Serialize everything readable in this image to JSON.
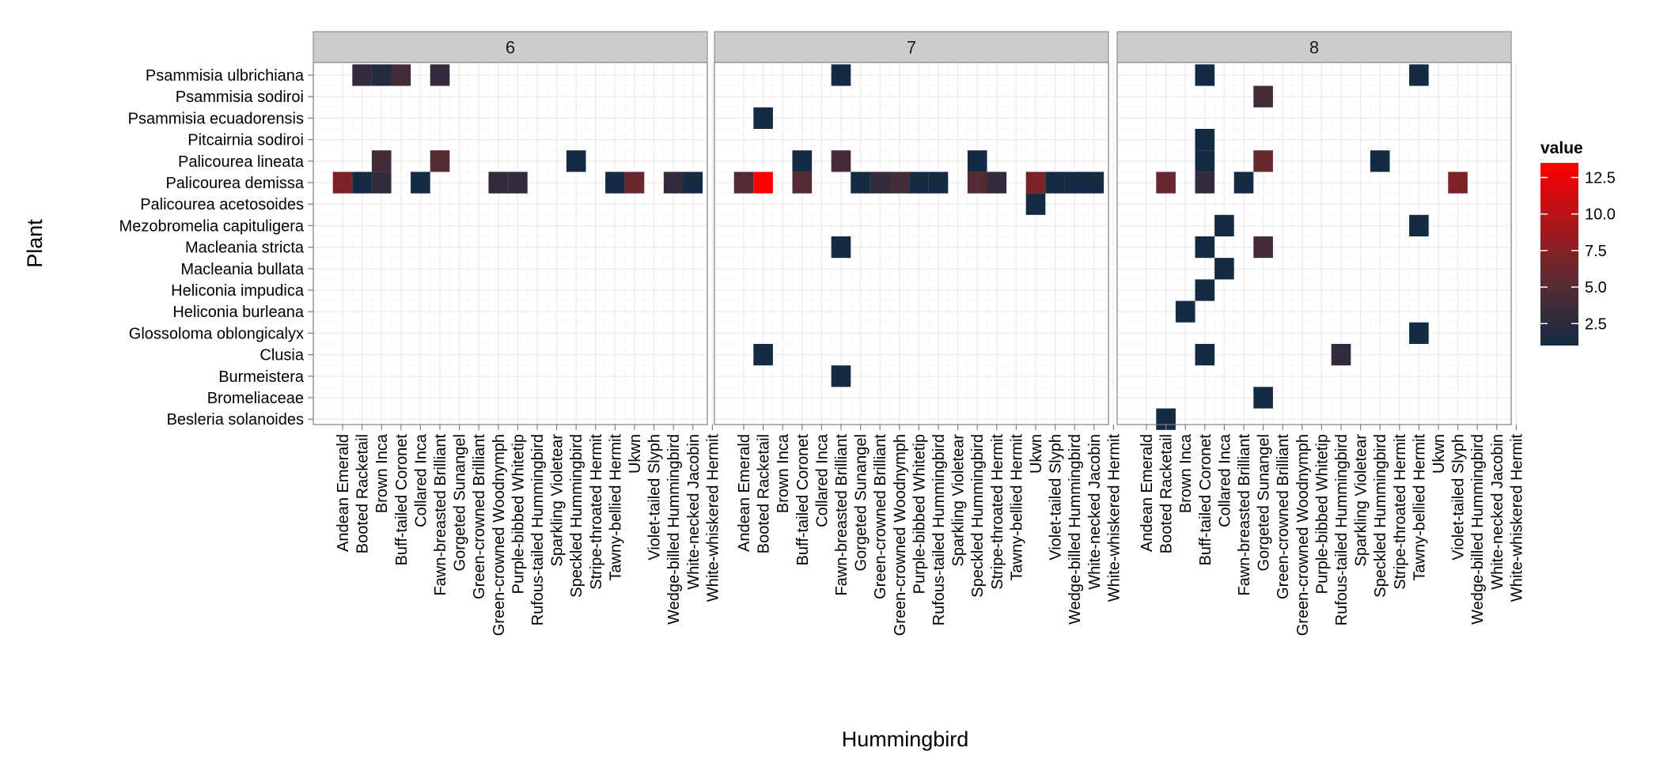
{
  "chart_data": {
    "type": "heatmap",
    "xlabel": "Hummingbird",
    "ylabel": "Plant",
    "facets": [
      "6",
      "7",
      "8"
    ],
    "x_categories": [
      "Andean Emerald",
      "Booted Racketail",
      "Brown Inca",
      "Buff-tailed Coronet",
      "Collared Inca",
      "Fawn-breasted Brilliant",
      "Gorgeted Sunangel",
      "Green-crowned Brilliant",
      "Green-crowned Woodnymph",
      "Purple-bibbed Whitetip",
      "Rufous-tailed Hummingbird",
      "Sparkling Violetear",
      "Speckled Hummingbird",
      "Stripe-throated Hermit",
      "Tawny-bellied Hermit",
      "Ukwn",
      "Violet-tailed Slyph",
      "Wedge-billed Hummingbird",
      "White-necked Jacobin",
      "White-whiskered Hermit"
    ],
    "y_categories": [
      "Psammisia ulbrichiana",
      "Psammisia sodiroi",
      "Psammisia ecuadorensis",
      "Pitcairnia sodiroi",
      "Palicourea lineata",
      "Palicourea demissa",
      "Palicourea acetosoides",
      "Mezobromelia capituligera",
      "Macleania stricta",
      "Macleania bullata",
      "Heliconia impudica",
      "Heliconia burleana",
      "Glossoloma oblongicalyx",
      "Clusia",
      "Burmeistera",
      "Bromeliaceae",
      "Besleria solanoides"
    ],
    "legend": {
      "title": "value",
      "ticks": [
        "2.5",
        "5.0",
        "7.5",
        "10.0",
        "12.5"
      ],
      "range": [
        1,
        13.5
      ],
      "low_color": "#132b43",
      "mid_color": "#5a2b33",
      "high_color": "#ff0000",
      "position": "right"
    },
    "cells": [
      {
        "facet": "6",
        "x": "Booted Racketail",
        "y": "Psammisia ulbrichiana",
        "value": 3
      },
      {
        "facet": "6",
        "x": "Brown Inca",
        "y": "Psammisia ulbrichiana",
        "value": 2
      },
      {
        "facet": "6",
        "x": "Buff-tailed Coronet",
        "y": "Psammisia ulbrichiana",
        "value": 4
      },
      {
        "facet": "6",
        "x": "Fawn-breasted Brilliant",
        "y": "Psammisia ulbrichiana",
        "value": 3
      },
      {
        "facet": "6",
        "x": "Brown Inca",
        "y": "Palicourea lineata",
        "value": 4
      },
      {
        "facet": "6",
        "x": "Fawn-breasted Brilliant",
        "y": "Palicourea lineata",
        "value": 5
      },
      {
        "facet": "6",
        "x": "Speckled Hummingbird",
        "y": "Palicourea lineata",
        "value": 1
      },
      {
        "facet": "6",
        "x": "Andean Emerald",
        "y": "Palicourea demissa",
        "value": 7
      },
      {
        "facet": "6",
        "x": "Booted Racketail",
        "y": "Palicourea demissa",
        "value": 1
      },
      {
        "facet": "6",
        "x": "Brown Inca",
        "y": "Palicourea demissa",
        "value": 3
      },
      {
        "facet": "6",
        "x": "Collared Inca",
        "y": "Palicourea demissa",
        "value": 1
      },
      {
        "facet": "6",
        "x": "Green-crowned Woodnymph",
        "y": "Palicourea demissa",
        "value": 3
      },
      {
        "facet": "6",
        "x": "Purple-bibbed Whitetip",
        "y": "Palicourea demissa",
        "value": 3
      },
      {
        "facet": "6",
        "x": "Tawny-bellied Hermit",
        "y": "Palicourea demissa",
        "value": 1
      },
      {
        "facet": "6",
        "x": "Ukwn",
        "y": "Palicourea demissa",
        "value": 6
      },
      {
        "facet": "6",
        "x": "Wedge-billed Hummingbird",
        "y": "Palicourea demissa",
        "value": 3
      },
      {
        "facet": "6",
        "x": "White-necked Jacobin",
        "y": "Palicourea demissa",
        "value": 1
      },
      {
        "facet": "7",
        "x": "Fawn-breasted Brilliant",
        "y": "Psammisia ulbrichiana",
        "value": 1
      },
      {
        "facet": "7",
        "x": "Booted Racketail",
        "y": "Psammisia ecuadorensis",
        "value": 1
      },
      {
        "facet": "7",
        "x": "Buff-tailed Coronet",
        "y": "Palicourea lineata",
        "value": 1
      },
      {
        "facet": "7",
        "x": "Fawn-breasted Brilliant",
        "y": "Palicourea lineata",
        "value": 4
      },
      {
        "facet": "7",
        "x": "Speckled Hummingbird",
        "y": "Palicourea lineata",
        "value": 1
      },
      {
        "facet": "7",
        "x": "Andean Emerald",
        "y": "Palicourea demissa",
        "value": 5
      },
      {
        "facet": "7",
        "x": "Booted Racketail",
        "y": "Palicourea demissa",
        "value": 13.5
      },
      {
        "facet": "7",
        "x": "Buff-tailed Coronet",
        "y": "Palicourea demissa",
        "value": 5
      },
      {
        "facet": "7",
        "x": "Gorgeted Sunangel",
        "y": "Palicourea demissa",
        "value": 1
      },
      {
        "facet": "7",
        "x": "Green-crowned Brilliant",
        "y": "Palicourea demissa",
        "value": 3
      },
      {
        "facet": "7",
        "x": "Green-crowned Woodnymph",
        "y": "Palicourea demissa",
        "value": 4
      },
      {
        "facet": "7",
        "x": "Purple-bibbed Whitetip",
        "y": "Palicourea demissa",
        "value": 1
      },
      {
        "facet": "7",
        "x": "Rufous-tailed Hummingbird",
        "y": "Palicourea demissa",
        "value": 1
      },
      {
        "facet": "7",
        "x": "Speckled Hummingbird",
        "y": "Palicourea demissa",
        "value": 5
      },
      {
        "facet": "7",
        "x": "Stripe-throated Hermit",
        "y": "Palicourea demissa",
        "value": 3
      },
      {
        "facet": "7",
        "x": "Ukwn",
        "y": "Palicourea demissa",
        "value": 7
      },
      {
        "facet": "7",
        "x": "Violet-tailed Slyph",
        "y": "Palicourea demissa",
        "value": 1
      },
      {
        "facet": "7",
        "x": "Wedge-billed Hummingbird",
        "y": "Palicourea demissa",
        "value": 1
      },
      {
        "facet": "7",
        "x": "White-necked Jacobin",
        "y": "Palicourea demissa",
        "value": 1
      },
      {
        "facet": "7",
        "x": "Ukwn",
        "y": "Palicourea acetosoides",
        "value": 1
      },
      {
        "facet": "7",
        "x": "Fawn-breasted Brilliant",
        "y": "Macleania stricta",
        "value": 1
      },
      {
        "facet": "7",
        "x": "Booted Racketail",
        "y": "Clusia",
        "value": 1
      },
      {
        "facet": "7",
        "x": "Fawn-breasted Brilliant",
        "y": "Burmeistera",
        "value": 1
      },
      {
        "facet": "8",
        "x": "Buff-tailed Coronet",
        "y": "Psammisia ulbrichiana",
        "value": 1
      },
      {
        "facet": "8",
        "x": "Tawny-bellied Hermit",
        "y": "Psammisia ulbrichiana",
        "value": 1
      },
      {
        "facet": "8",
        "x": "Gorgeted Sunangel",
        "y": "Psammisia sodiroi",
        "value": 4
      },
      {
        "facet": "8",
        "x": "Buff-tailed Coronet",
        "y": "Pitcairnia sodiroi",
        "value": 1
      },
      {
        "facet": "8",
        "x": "Buff-tailed Coronet",
        "y": "Palicourea lineata",
        "value": 1
      },
      {
        "facet": "8",
        "x": "Gorgeted Sunangel",
        "y": "Palicourea lineata",
        "value": 6
      },
      {
        "facet": "8",
        "x": "Speckled Hummingbird",
        "y": "Palicourea lineata",
        "value": 1
      },
      {
        "facet": "8",
        "x": "Booted Racketail",
        "y": "Palicourea demissa",
        "value": 6
      },
      {
        "facet": "8",
        "x": "Buff-tailed Coronet",
        "y": "Palicourea demissa",
        "value": 3
      },
      {
        "facet": "8",
        "x": "Fawn-breasted Brilliant",
        "y": "Palicourea demissa",
        "value": 1
      },
      {
        "facet": "8",
        "x": "Violet-tailed Slyph",
        "y": "Palicourea demissa",
        "value": 7
      },
      {
        "facet": "8",
        "x": "Collared Inca",
        "y": "Mezobromelia capituligera",
        "value": 1
      },
      {
        "facet": "8",
        "x": "Tawny-bellied Hermit",
        "y": "Mezobromelia capituligera",
        "value": 1
      },
      {
        "facet": "8",
        "x": "Buff-tailed Coronet",
        "y": "Macleania stricta",
        "value": 1
      },
      {
        "facet": "8",
        "x": "Gorgeted Sunangel",
        "y": "Macleania stricta",
        "value": 4
      },
      {
        "facet": "8",
        "x": "Collared Inca",
        "y": "Macleania bullata",
        "value": 1
      },
      {
        "facet": "8",
        "x": "Buff-tailed Coronet",
        "y": "Heliconia impudica",
        "value": 1
      },
      {
        "facet": "8",
        "x": "Brown Inca",
        "y": "Heliconia burleana",
        "value": 1
      },
      {
        "facet": "8",
        "x": "Tawny-bellied Hermit",
        "y": "Glossoloma oblongicalyx",
        "value": 1
      },
      {
        "facet": "8",
        "x": "Buff-tailed Coronet",
        "y": "Clusia",
        "value": 1
      },
      {
        "facet": "8",
        "x": "Rufous-tailed Hummingbird",
        "y": "Clusia",
        "value": 3
      },
      {
        "facet": "8",
        "x": "Gorgeted Sunangel",
        "y": "Bromeliaceae",
        "value": 1
      },
      {
        "facet": "8",
        "x": "Booted Racketail",
        "y": "Besleria solanoides",
        "value": 1
      }
    ]
  }
}
